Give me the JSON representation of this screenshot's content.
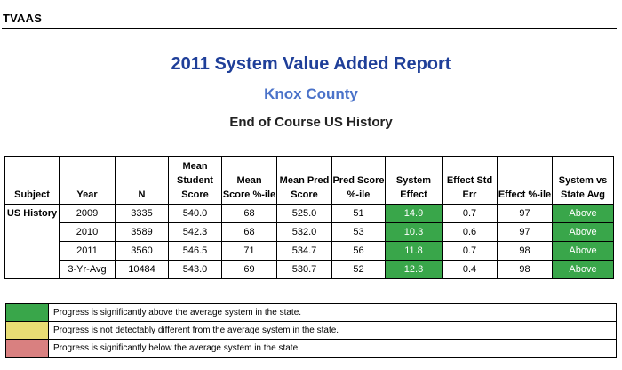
{
  "header": {
    "brand": "TVAAS"
  },
  "report": {
    "title": "2011 System Value Added Report",
    "subtitle": "Knox County",
    "course": "End of Course US History"
  },
  "table": {
    "columns": [
      "Subject",
      "Year",
      "N",
      "Mean Student Score",
      "Mean Score %-ile",
      "Mean Pred Score",
      "Pred Score %-ile",
      "System Effect",
      "Effect Std Err",
      "Effect %-ile",
      "System vs State Avg"
    ],
    "subject": "US History",
    "rows": [
      {
        "year": "2009",
        "n": "3335",
        "mean_student_score": "540.0",
        "mean_score_pctile": "68",
        "mean_pred_score": "525.0",
        "pred_score_pctile": "51",
        "system_effect": "14.9",
        "effect_std_err": "0.7",
        "effect_pctile": "97",
        "vs_state": "Above"
      },
      {
        "year": "2010",
        "n": "3589",
        "mean_student_score": "542.3",
        "mean_score_pctile": "68",
        "mean_pred_score": "532.0",
        "pred_score_pctile": "53",
        "system_effect": "10.3",
        "effect_std_err": "0.6",
        "effect_pctile": "97",
        "vs_state": "Above"
      },
      {
        "year": "2011",
        "n": "3560",
        "mean_student_score": "546.5",
        "mean_score_pctile": "71",
        "mean_pred_score": "534.7",
        "pred_score_pctile": "56",
        "system_effect": "11.8",
        "effect_std_err": "0.7",
        "effect_pctile": "98",
        "vs_state": "Above"
      },
      {
        "year": "3-Yr-Avg",
        "n": "10484",
        "mean_student_score": "543.0",
        "mean_score_pctile": "69",
        "mean_pred_score": "530.7",
        "pred_score_pctile": "52",
        "system_effect": "12.3",
        "effect_std_err": "0.4",
        "effect_pctile": "98",
        "vs_state": "Above"
      }
    ]
  },
  "legend": [
    {
      "color": "#39a64a",
      "text": "Progress is significantly above the average system in the state."
    },
    {
      "color": "#e8dd74",
      "text": "Progress is not detectably different from the average system in the state."
    },
    {
      "color": "#d98080",
      "text": "Progress is significantly below the average system in the state."
    }
  ],
  "colors": {
    "title": "#1f3f99",
    "subtitle": "#4a72c9",
    "effect_above": "#39a64a"
  }
}
